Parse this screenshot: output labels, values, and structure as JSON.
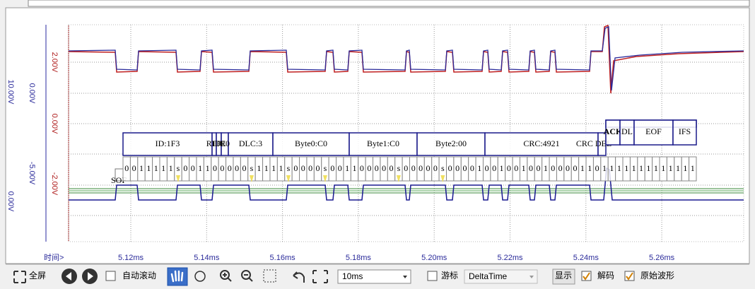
{
  "axes": {
    "outer_labels": [
      "10.00V",
      "0.00V"
    ],
    "inner_labels": [
      "0.00V",
      "-5.00V"
    ],
    "red_labels": [
      "2.00V",
      "0.00V",
      "-2.00V"
    ]
  },
  "time_axis": {
    "label": "时间>",
    "ticks": [
      "5.12ms",
      "5.14ms",
      "5.16ms",
      "5.18ms",
      "5.20ms",
      "5.22ms",
      "5.24ms",
      "5.26ms"
    ]
  },
  "decode": {
    "sof": "SOF",
    "fields": [
      "ID:1F3",
      "RTR",
      "IDE",
      "R0",
      "DLC:3",
      "Byte0:C0",
      "Byte1:C0",
      "Byte2:00",
      "CRC:4921",
      "CRC DEL"
    ],
    "tail_fields": [
      "ACK",
      "DL",
      "EOF",
      "IFS"
    ],
    "bits": [
      "0",
      "0",
      "1",
      "1",
      "1",
      "1",
      "1",
      "s",
      "0",
      "0",
      "1",
      "1",
      "0",
      "0",
      "0",
      "0",
      "0",
      "s",
      "1",
      "1",
      "1",
      "1",
      "s",
      "0",
      "0",
      "0",
      "0",
      "s",
      "0",
      "0",
      "1",
      "1",
      "0",
      "0",
      "0",
      "0",
      "0",
      "s",
      "0",
      "0",
      "0",
      "0",
      "0",
      "s",
      "0",
      "0",
      "0",
      "0",
      "1",
      "0",
      "0",
      "1",
      "0",
      "0",
      "1",
      "0",
      "0",
      "1",
      "0",
      "0",
      "0",
      "0",
      "1",
      "1",
      "0",
      "1",
      "1",
      "1",
      "1",
      "1",
      "1",
      "1",
      "1",
      "1",
      "1",
      "1",
      "1",
      "1"
    ]
  },
  "toolbar": {
    "fullscreen": "全屏",
    "auto_scroll": "自动滚动",
    "timebase": "10ms",
    "cursor": "游标",
    "cursor_mode": "DeltaTime",
    "display": "显示",
    "decode": "解码",
    "raw_wave": "原始波形"
  }
}
